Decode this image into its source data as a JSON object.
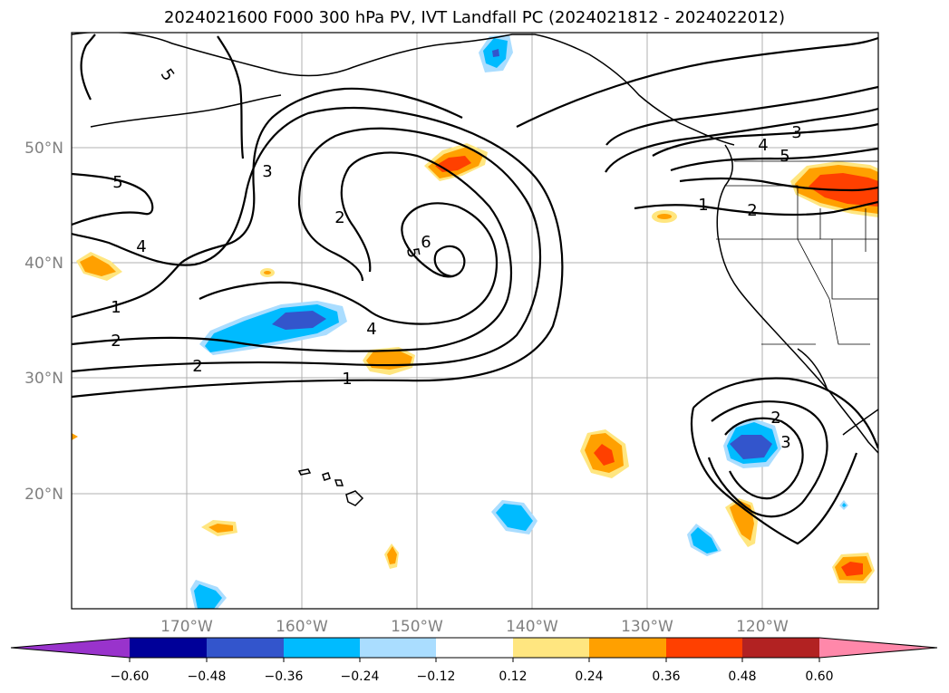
{
  "title": "2024021600 F000 300 hPa PV, IVT Landfall PC (2024021812 - 2024022012)",
  "map": {
    "lat_labels": [
      "50°N",
      "40°N",
      "30°N",
      "20°N"
    ],
    "lon_labels": [
      "170°W",
      "160°W",
      "150°W",
      "140°W",
      "130°W",
      "120°W"
    ],
    "grid": true,
    "label_color": "#808080"
  },
  "contour_labels": [
    "5",
    "5",
    "4",
    "3",
    "2",
    "1",
    "2",
    "6",
    "5",
    "4",
    "2",
    "1",
    "1",
    "2",
    "4",
    "3",
    "5",
    "2",
    "3"
  ],
  "colorbar": {
    "ticks": [
      "−0.60",
      "−0.48",
      "−0.36",
      "−0.24",
      "−0.12",
      "0.12",
      "0.24",
      "0.36",
      "0.48",
      "0.60"
    ],
    "colors": [
      "#9933cc",
      "#000099",
      "#3355cc",
      "#00bbff",
      "#aaddff",
      "#ffffff",
      "#ffe680",
      "#ffa000",
      "#ff4000",
      "#b22222",
      "#ff88aa"
    ]
  }
}
